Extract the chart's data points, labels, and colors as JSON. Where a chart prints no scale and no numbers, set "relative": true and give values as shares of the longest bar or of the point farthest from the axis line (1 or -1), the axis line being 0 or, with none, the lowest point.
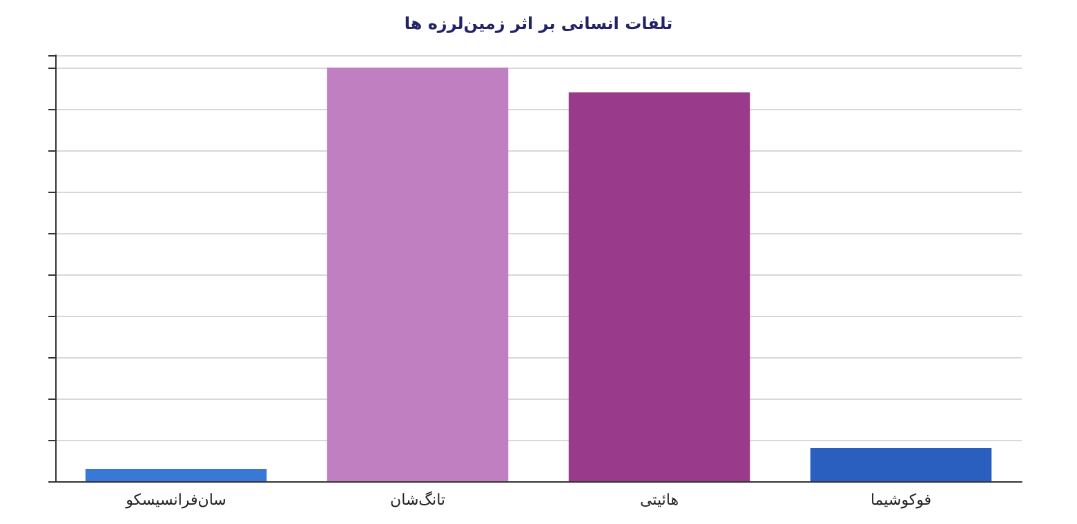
{
  "chart_data": {
    "type": "bar",
    "title": "تلفات انسانی بر اثر زمین‌لرزه ها",
    "categories": [
      "سان‌فرانسیسکو",
      "تانگ‌شان",
      "هائیتی",
      "فوکوشیما"
    ],
    "values": [
      0.03,
      1,
      0.94,
      0.08
    ],
    "colors": [
      "#3a78d8",
      "#c07fc0",
      "#9a3a8a",
      "#2a5fc0"
    ],
    "relative": true,
    "grid": true
  }
}
